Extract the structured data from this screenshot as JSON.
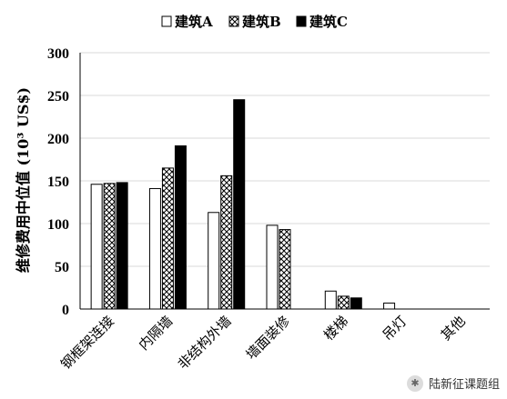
{
  "chart_data": {
    "type": "bar",
    "title": "",
    "xlabel": "",
    "ylabel": "维修费用中位值 (10³ US$)",
    "ylim": [
      0,
      300
    ],
    "yticks": [
      0,
      50,
      100,
      150,
      200,
      250,
      300
    ],
    "grid": true,
    "legend_position": "top",
    "categories": [
      "钢框架连接",
      "内隔墙",
      "非结构外墙",
      "墙面装修",
      "楼梯",
      "吊灯",
      "其他"
    ],
    "series": [
      {
        "name": "建筑A",
        "pattern": "white",
        "values": [
          146,
          141,
          113,
          98,
          21,
          7,
          0
        ]
      },
      {
        "name": "建筑B",
        "pattern": "crosshatch",
        "values": [
          147,
          165,
          156,
          93,
          15,
          0,
          0
        ]
      },
      {
        "name": "建筑C",
        "pattern": "black",
        "values": [
          148,
          191,
          245,
          0,
          13,
          0,
          0
        ]
      }
    ]
  },
  "watermark": {
    "text": "陆新征课题组"
  },
  "colors": {
    "axis": "#000000",
    "grid": "#d9d9d9",
    "bar_edge": "#000000",
    "fill_black": "#000000",
    "fill_white": "#ffffff"
  }
}
